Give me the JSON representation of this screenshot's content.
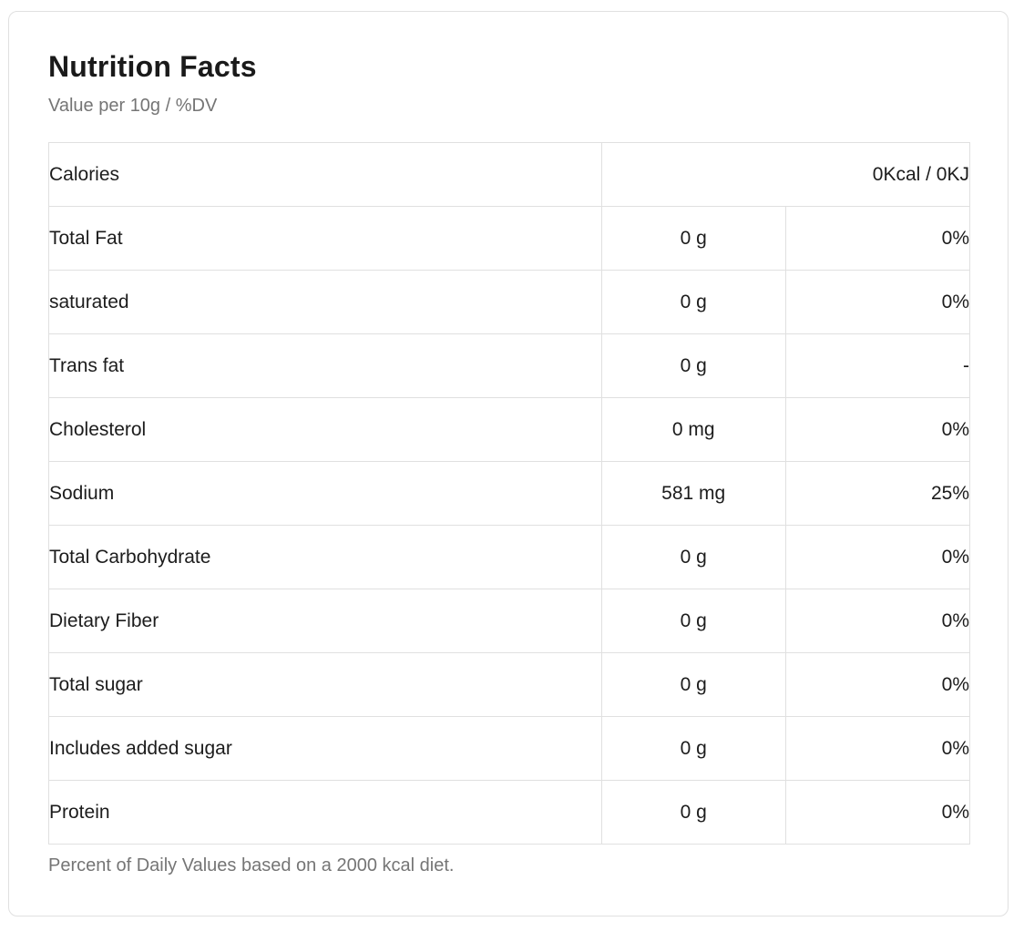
{
  "card": {
    "title": "Nutrition Facts",
    "subtitle": "Value per 10g / %DV",
    "footnote": "Percent of Daily Values based on a 2000 kcal diet."
  },
  "table": {
    "columns": [
      "nutrient",
      "amount",
      "daily_value"
    ],
    "rows": [
      {
        "label": "Calories",
        "amount": "0Kcal / 0KJ",
        "dv": null,
        "merged": true
      },
      {
        "label": "Total Fat",
        "amount": "0 g",
        "dv": "0%",
        "merged": false
      },
      {
        "label": "saturated",
        "amount": "0 g",
        "dv": "0%",
        "merged": false
      },
      {
        "label": "Trans fat",
        "amount": "0 g",
        "dv": "-",
        "merged": false
      },
      {
        "label": "Cholesterol",
        "amount": "0 mg",
        "dv": "0%",
        "merged": false
      },
      {
        "label": "Sodium",
        "amount": "581 mg",
        "dv": "25%",
        "merged": false
      },
      {
        "label": "Total Carbohydrate",
        "amount": "0 g",
        "dv": "0%",
        "merged": false
      },
      {
        "label": "Dietary Fiber",
        "amount": "0 g",
        "dv": "0%",
        "merged": false
      },
      {
        "label": "Total sugar",
        "amount": "0 g",
        "dv": "0%",
        "merged": false
      },
      {
        "label": "Includes added sugar",
        "amount": "0 g",
        "dv": "0%",
        "merged": false
      },
      {
        "label": "Protein",
        "amount": "0 g",
        "dv": "0%",
        "merged": false
      }
    ]
  },
  "colors": {
    "text": "#1c1c1c",
    "muted_text": "#757575",
    "border": "#e0e0e0",
    "background": "#ffffff"
  }
}
